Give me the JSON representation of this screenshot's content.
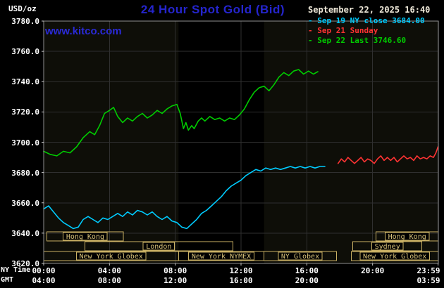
{
  "colors": {
    "background": "#000000",
    "title_blue": "#2525cd",
    "link_blue": "#2a2ad6",
    "datetime_text": "#efe9da",
    "axis_text": "#ffffff"
  },
  "header": {
    "units_label": "USD/oz",
    "title": "24 Hour Spot Gold (Bid)",
    "datetime": "September 22, 2025 16:40",
    "watermark": "www.kitco.com",
    "legend": [
      {
        "id": "sep19",
        "label": "- Sep 19 NY close 3684.00",
        "color": "#00ccff"
      },
      {
        "id": "sep21",
        "label": "- Sep 21 Sunday",
        "color": "#ff3333"
      },
      {
        "id": "sep22",
        "label": "- Sep 22 Last 3746.60",
        "color": "#00cc00"
      }
    ]
  },
  "axes": {
    "ny_label": "NY Time",
    "gmt_label": "GMT"
  },
  "chart_data": {
    "type": "line",
    "title": "24 Hour Spot Gold (Bid)",
    "xlabel": "NY Time",
    "ylabel": "USD/oz",
    "x_range_hours": [
      0,
      24
    ],
    "ylim": [
      3620,
      3780
    ],
    "y_tick_step": 20,
    "grid": true,
    "legend_position": "top-right",
    "y_ticks": [
      {
        "v": 3780,
        "label": "3780.0"
      },
      {
        "v": 3760,
        "label": "3760.0"
      },
      {
        "v": 3740,
        "label": "3740.0"
      },
      {
        "v": 3720,
        "label": "3720.0"
      },
      {
        "v": 3700,
        "label": "3700.0"
      },
      {
        "v": 3680,
        "label": "3680.0"
      },
      {
        "v": 3660,
        "label": "3660.0"
      },
      {
        "v": 3640,
        "label": "3640.0"
      },
      {
        "v": 3620,
        "label": "3620.0"
      }
    ],
    "x_ticks": [
      {
        "h": 0,
        "ny": "00:00",
        "gmt": "04:00"
      },
      {
        "h": 4,
        "ny": "04:00",
        "gmt": "08:00"
      },
      {
        "h": 8,
        "ny": "08:00",
        "gmt": "12:00"
      },
      {
        "h": 12,
        "ny": "12:00",
        "gmt": "16:00"
      },
      {
        "h": 16,
        "ny": "16:00",
        "gmt": "20:00"
      },
      {
        "h": 20,
        "ny": "20:00",
        "gmt": ""
      },
      {
        "h": 23.983,
        "ny": "23:59",
        "gmt": "03:59"
      }
    ],
    "colors": {
      "grid": "#2f2f2f",
      "frame": "#8f8f8f",
      "plot_bg": "#0e0e08",
      "tick": "#cccccc",
      "session": "#c9b064",
      "session_text": "#d8c27a"
    },
    "shaded_band": {
      "start": 8.2,
      "end": 13.4,
      "color": "#000000"
    },
    "sessions": [
      {
        "row": 0,
        "label": "Hong Kong",
        "start": 0.2,
        "end": 4.85
      },
      {
        "row": 0,
        "label": "Hong Kong",
        "start": 20.2,
        "end": 24.0
      },
      {
        "row": 1,
        "label": "London",
        "start": 2.5,
        "end": 11.5
      },
      {
        "row": 1,
        "label": "Sydney",
        "start": 18.8,
        "end": 23.0
      },
      {
        "row": 2,
        "label": "New York Globex",
        "start": 0.0,
        "end": 8.2
      },
      {
        "row": 2,
        "label": "New York NYMEX",
        "start": 8.2,
        "end": 13.4
      },
      {
        "row": 2,
        "label": "NY Globex",
        "start": 13.4,
        "end": 17.8
      },
      {
        "row": 2,
        "label": "New York Globex",
        "start": 18.7,
        "end": 24.0
      }
    ],
    "series": [
      {
        "id": "sep19-ny-close",
        "name": "Sep 19 NY close 3684.00",
        "color": "#00ccff",
        "points": [
          [
            0,
            3656
          ],
          [
            0.3,
            3658
          ],
          [
            0.6,
            3654
          ],
          [
            0.9,
            3650
          ],
          [
            1.2,
            3647
          ],
          [
            1.5,
            3645
          ],
          [
            1.8,
            3643
          ],
          [
            2.1,
            3644
          ],
          [
            2.4,
            3649
          ],
          [
            2.7,
            3651
          ],
          [
            3.0,
            3649
          ],
          [
            3.3,
            3647
          ],
          [
            3.6,
            3650
          ],
          [
            3.9,
            3649
          ],
          [
            4.2,
            3651
          ],
          [
            4.5,
            3653
          ],
          [
            4.8,
            3651
          ],
          [
            5.1,
            3654
          ],
          [
            5.4,
            3652
          ],
          [
            5.7,
            3655
          ],
          [
            6.0,
            3654
          ],
          [
            6.3,
            3652
          ],
          [
            6.6,
            3654
          ],
          [
            6.9,
            3651
          ],
          [
            7.2,
            3649
          ],
          [
            7.5,
            3651
          ],
          [
            7.8,
            3648
          ],
          [
            8.1,
            3647
          ],
          [
            8.4,
            3644
          ],
          [
            8.7,
            3643
          ],
          [
            9.0,
            3646
          ],
          [
            9.3,
            3649
          ],
          [
            9.6,
            3653
          ],
          [
            9.9,
            3655
          ],
          [
            10.2,
            3658
          ],
          [
            10.5,
            3661
          ],
          [
            10.8,
            3664
          ],
          [
            11.1,
            3668
          ],
          [
            11.4,
            3671
          ],
          [
            11.7,
            3673
          ],
          [
            12.0,
            3675
          ],
          [
            12.3,
            3678
          ],
          [
            12.6,
            3680
          ],
          [
            12.9,
            3682
          ],
          [
            13.2,
            3681
          ],
          [
            13.5,
            3683
          ],
          [
            13.8,
            3682
          ],
          [
            14.1,
            3683
          ],
          [
            14.4,
            3682
          ],
          [
            14.7,
            3683
          ],
          [
            15.0,
            3684
          ],
          [
            15.3,
            3683
          ],
          [
            15.6,
            3684
          ],
          [
            15.9,
            3683
          ],
          [
            16.2,
            3684
          ],
          [
            16.5,
            3683
          ],
          [
            16.8,
            3684
          ],
          [
            17.1,
            3684
          ]
        ]
      },
      {
        "id": "sep21-sunday",
        "name": "Sep 21 Sunday",
        "color": "#ff3333",
        "points": [
          [
            17.9,
            3686
          ],
          [
            18.1,
            3689
          ],
          [
            18.3,
            3687
          ],
          [
            18.5,
            3690
          ],
          [
            18.7,
            3688
          ],
          [
            18.9,
            3686
          ],
          [
            19.1,
            3688
          ],
          [
            19.3,
            3690
          ],
          [
            19.5,
            3687
          ],
          [
            19.7,
            3689
          ],
          [
            19.9,
            3688
          ],
          [
            20.1,
            3686
          ],
          [
            20.3,
            3689
          ],
          [
            20.5,
            3691
          ],
          [
            20.7,
            3688
          ],
          [
            20.9,
            3690
          ],
          [
            21.1,
            3688
          ],
          [
            21.3,
            3690
          ],
          [
            21.5,
            3687
          ],
          [
            21.7,
            3689
          ],
          [
            21.9,
            3691
          ],
          [
            22.1,
            3689
          ],
          [
            22.3,
            3690
          ],
          [
            22.5,
            3688
          ],
          [
            22.7,
            3691
          ],
          [
            22.9,
            3689
          ],
          [
            23.1,
            3690
          ],
          [
            23.3,
            3689
          ],
          [
            23.5,
            3691
          ],
          [
            23.7,
            3690
          ],
          [
            23.85,
            3693
          ],
          [
            23.98,
            3697
          ]
        ]
      },
      {
        "id": "sep22-last",
        "name": "Sep 22 Last 3746.60",
        "color": "#00cc00",
        "points": [
          [
            0,
            3694
          ],
          [
            0.4,
            3692
          ],
          [
            0.8,
            3691
          ],
          [
            1.2,
            3694
          ],
          [
            1.6,
            3693
          ],
          [
            2.0,
            3697
          ],
          [
            2.4,
            3703
          ],
          [
            2.8,
            3707
          ],
          [
            3.1,
            3705
          ],
          [
            3.4,
            3711
          ],
          [
            3.7,
            3719
          ],
          [
            4.0,
            3721
          ],
          [
            4.25,
            3723
          ],
          [
            4.5,
            3717
          ],
          [
            4.8,
            3713
          ],
          [
            5.1,
            3716
          ],
          [
            5.4,
            3714
          ],
          [
            5.7,
            3717
          ],
          [
            6.0,
            3719
          ],
          [
            6.3,
            3716
          ],
          [
            6.6,
            3718
          ],
          [
            6.9,
            3721
          ],
          [
            7.2,
            3719
          ],
          [
            7.5,
            3722
          ],
          [
            7.8,
            3724
          ],
          [
            8.1,
            3725
          ],
          [
            8.3,
            3719
          ],
          [
            8.5,
            3709
          ],
          [
            8.65,
            3713
          ],
          [
            8.8,
            3708
          ],
          [
            9.0,
            3711
          ],
          [
            9.15,
            3709
          ],
          [
            9.4,
            3714
          ],
          [
            9.6,
            3716
          ],
          [
            9.8,
            3714
          ],
          [
            10.1,
            3717
          ],
          [
            10.4,
            3715
          ],
          [
            10.7,
            3716
          ],
          [
            11.0,
            3714
          ],
          [
            11.3,
            3716
          ],
          [
            11.6,
            3715
          ],
          [
            11.9,
            3718
          ],
          [
            12.2,
            3722
          ],
          [
            12.5,
            3728
          ],
          [
            12.8,
            3733
          ],
          [
            13.1,
            3736
          ],
          [
            13.4,
            3737
          ],
          [
            13.7,
            3734
          ],
          [
            14.0,
            3738
          ],
          [
            14.3,
            3743
          ],
          [
            14.6,
            3746
          ],
          [
            14.9,
            3744
          ],
          [
            15.2,
            3747
          ],
          [
            15.5,
            3748
          ],
          [
            15.8,
            3745
          ],
          [
            16.1,
            3747
          ],
          [
            16.4,
            3745
          ],
          [
            16.67,
            3746.6
          ]
        ]
      }
    ]
  }
}
